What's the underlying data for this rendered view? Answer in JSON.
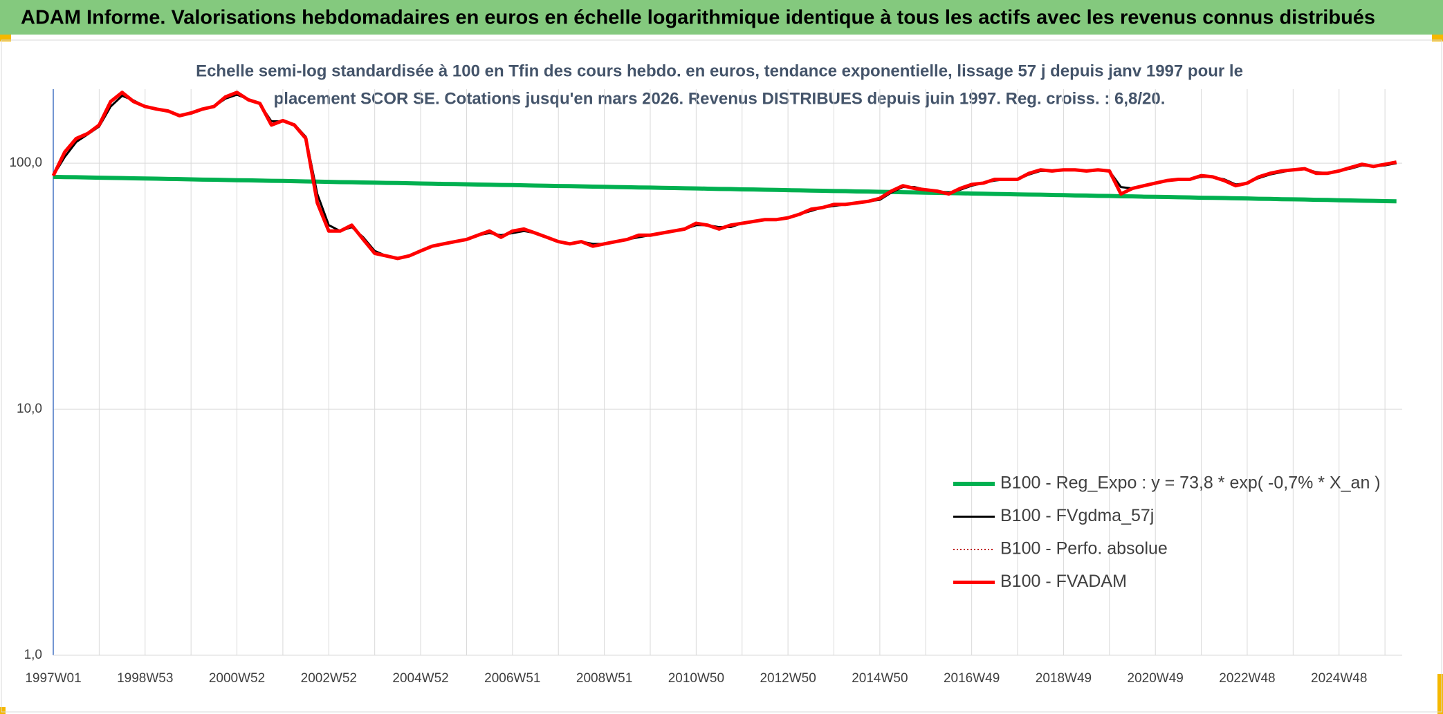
{
  "chart_data": {
    "type": "line",
    "title": "ADAM Informe. Valorisations hebdomadaires en euros en échelle logarithmique identique à tous les actifs avec les revenus connus distribués",
    "subtitle": [
      "Echelle semi-log standardisée à 100 en Tfin des cours hebdo. en euros, tendance exponentielle, lissage 57 j depuis janv 1997 pour le",
      "placement SCOR SE. Cotations jusqu'en mars 2026. Revenus DISTRIBUES depuis juin 1997. Reg. croiss. : 6,8/20."
    ],
    "log_scale": true,
    "grid": true,
    "legend": "lower right",
    "ylim": [
      1,
      200
    ],
    "yticks": [
      {
        "value": 1,
        "label": "1,0"
      },
      {
        "value": 10,
        "label": "10,0"
      },
      {
        "value": 100,
        "label": "100,0"
      }
    ],
    "categories": [
      "1997W01",
      null,
      null,
      null,
      null,
      null,
      null,
      null,
      "1998W53",
      null,
      null,
      null,
      null,
      null,
      null,
      null,
      "2000W52",
      null,
      null,
      null,
      null,
      null,
      null,
      null,
      "2002W52",
      null,
      null,
      null,
      null,
      null,
      null,
      null,
      "2004W52",
      null,
      null,
      null,
      null,
      null,
      null,
      null,
      "2006W51",
      null,
      null,
      null,
      null,
      null,
      null,
      null,
      "2008W51",
      null,
      null,
      null,
      null,
      null,
      null,
      null,
      "2010W50",
      null,
      null,
      null,
      null,
      null,
      null,
      null,
      "2012W50",
      null,
      null,
      null,
      null,
      null,
      null,
      null,
      "2014W50",
      null,
      null,
      null,
      null,
      null,
      null,
      null,
      "2016W49",
      null,
      null,
      null,
      null,
      null,
      null,
      null,
      "2018W49",
      null,
      null,
      null,
      null,
      null,
      null,
      null,
      "2020W49",
      null,
      null,
      null,
      null,
      null,
      null,
      null,
      "2022W48",
      null,
      null,
      null,
      null,
      null,
      null,
      null,
      "2024W48",
      null,
      null,
      null,
      null,
      null
    ],
    "series": [
      {
        "name": "B100 - Reg_Expo : y = 73,8 * exp( -0,7% *  X_an )",
        "color": "#00b050",
        "width": 6,
        "dash": "none",
        "values": [
          88.0,
          87.8,
          87.7,
          87.5,
          87.3,
          87.2,
          87.0,
          86.8,
          86.7,
          86.5,
          86.3,
          86.2,
          86.0,
          85.8,
          85.7,
          85.5,
          85.3,
          85.2,
          85.0,
          84.8,
          84.7,
          84.5,
          84.3,
          84.2,
          84.0,
          83.8,
          83.7,
          83.5,
          83.4,
          83.2,
          83.1,
          82.9,
          82.7,
          82.6,
          82.4,
          82.3,
          82.1,
          81.9,
          81.8,
          81.6,
          81.5,
          81.3,
          81.1,
          81.0,
          80.8,
          80.7,
          80.5,
          80.3,
          80.2,
          80.0,
          79.9,
          79.7,
          79.6,
          79.4,
          79.3,
          79.1,
          79.0,
          78.8,
          78.6,
          78.5,
          78.3,
          78.2,
          78.0,
          77.9,
          77.7,
          77.6,
          77.4,
          77.3,
          77.1,
          77.0,
          76.8,
          76.7,
          76.5,
          76.4,
          76.2,
          76.1,
          75.9,
          75.8,
          75.6,
          75.5,
          75.3,
          75.2,
          75.0,
          74.9,
          74.7,
          74.6,
          74.5,
          74.3,
          74.2,
          74.0,
          73.9,
          73.7,
          73.6,
          73.4,
          73.3,
          73.1,
          73.0,
          72.9,
          72.7,
          72.6,
          72.4,
          72.3,
          72.2,
          72.0,
          71.9,
          71.7,
          71.6,
          71.4,
          71.3,
          71.2,
          71.0,
          70.9,
          70.7,
          70.6,
          70.4,
          70.3,
          70.1,
          70.0
        ]
      },
      {
        "name": "B100 - FVgdma_57j",
        "color": "#000000",
        "width": 3,
        "dash": "none",
        "values": [
          89,
          106,
          122,
          131,
          141,
          170,
          188,
          180,
          170,
          166,
          163,
          157,
          159,
          165,
          170,
          183,
          190,
          182,
          174,
          148,
          148,
          144,
          128,
          75,
          56,
          53,
          55,
          50,
          44,
          42,
          41,
          42,
          44,
          46,
          47,
          48,
          49,
          51,
          52,
          51,
          52,
          53,
          52,
          50,
          48,
          47,
          48,
          47,
          47,
          48,
          49,
          50,
          51,
          52,
          53,
          54,
          56,
          56,
          55,
          55,
          57,
          58,
          59,
          59,
          60,
          62,
          64,
          66,
          67,
          68,
          69,
          70,
          71,
          76,
          80,
          80,
          78,
          77,
          76,
          78,
          81,
          83,
          85,
          86,
          86,
          90,
          93,
          93,
          94,
          94,
          93,
          94,
          93,
          80,
          79,
          81,
          83,
          85,
          86,
          86,
          88,
          88,
          86,
          82,
          83,
          87,
          90,
          92,
          94,
          95,
          92,
          91,
          93,
          95,
          98,
          97,
          98,
          100
        ]
      },
      {
        "name": "B100 - Perfo. absolue",
        "color": "#c00000",
        "width": 2,
        "dash": "2 3",
        "values": [
          89,
          111,
          126,
          132,
          143,
          178,
          194,
          178,
          170,
          166,
          163,
          156,
          160,
          166,
          170,
          186,
          194,
          181,
          175,
          143,
          149,
          143,
          126,
          69,
          53,
          53,
          56,
          49,
          43,
          42,
          41,
          42,
          44,
          46,
          47,
          48,
          49,
          51,
          53,
          50,
          53,
          54,
          52,
          50,
          48,
          47,
          48,
          46,
          47,
          48,
          49,
          51,
          51,
          52,
          53,
          54,
          57,
          56,
          54,
          56,
          57,
          58,
          59,
          59,
          60,
          62,
          65,
          66,
          68,
          68,
          69,
          70,
          72,
          77,
          81,
          79,
          78,
          77,
          75,
          79,
          82,
          83,
          86,
          86,
          86,
          91,
          94,
          93,
          94,
          94,
          93,
          94,
          93,
          75,
          79,
          81,
          83,
          85,
          86,
          86,
          89,
          88,
          85,
          81,
          83,
          88,
          91,
          93,
          94,
          95,
          91,
          91,
          93,
          96,
          99,
          97,
          99,
          101
        ]
      },
      {
        "name": "B100 - FVADAM",
        "color": "#ff0000",
        "width": 5,
        "dash": "none",
        "values": [
          89,
          111,
          126,
          132,
          143,
          178,
          194,
          178,
          170,
          166,
          163,
          156,
          160,
          166,
          170,
          186,
          194,
          181,
          175,
          143,
          149,
          143,
          126,
          69,
          53,
          53,
          56,
          49,
          43,
          42,
          41,
          42,
          44,
          46,
          47,
          48,
          49,
          51,
          53,
          50,
          53,
          54,
          52,
          50,
          48,
          47,
          48,
          46,
          47,
          48,
          49,
          51,
          51,
          52,
          53,
          54,
          57,
          56,
          54,
          56,
          57,
          58,
          59,
          59,
          60,
          62,
          65,
          66,
          68,
          68,
          69,
          70,
          72,
          77,
          81,
          79,
          78,
          77,
          75,
          79,
          82,
          83,
          86,
          86,
          86,
          91,
          94,
          93,
          94,
          94,
          93,
          94,
          93,
          75,
          79,
          81,
          83,
          85,
          86,
          86,
          89,
          88,
          85,
          81,
          83,
          88,
          91,
          93,
          94,
          95,
          91,
          91,
          93,
          96,
          99,
          97,
          99,
          101
        ]
      }
    ]
  }
}
